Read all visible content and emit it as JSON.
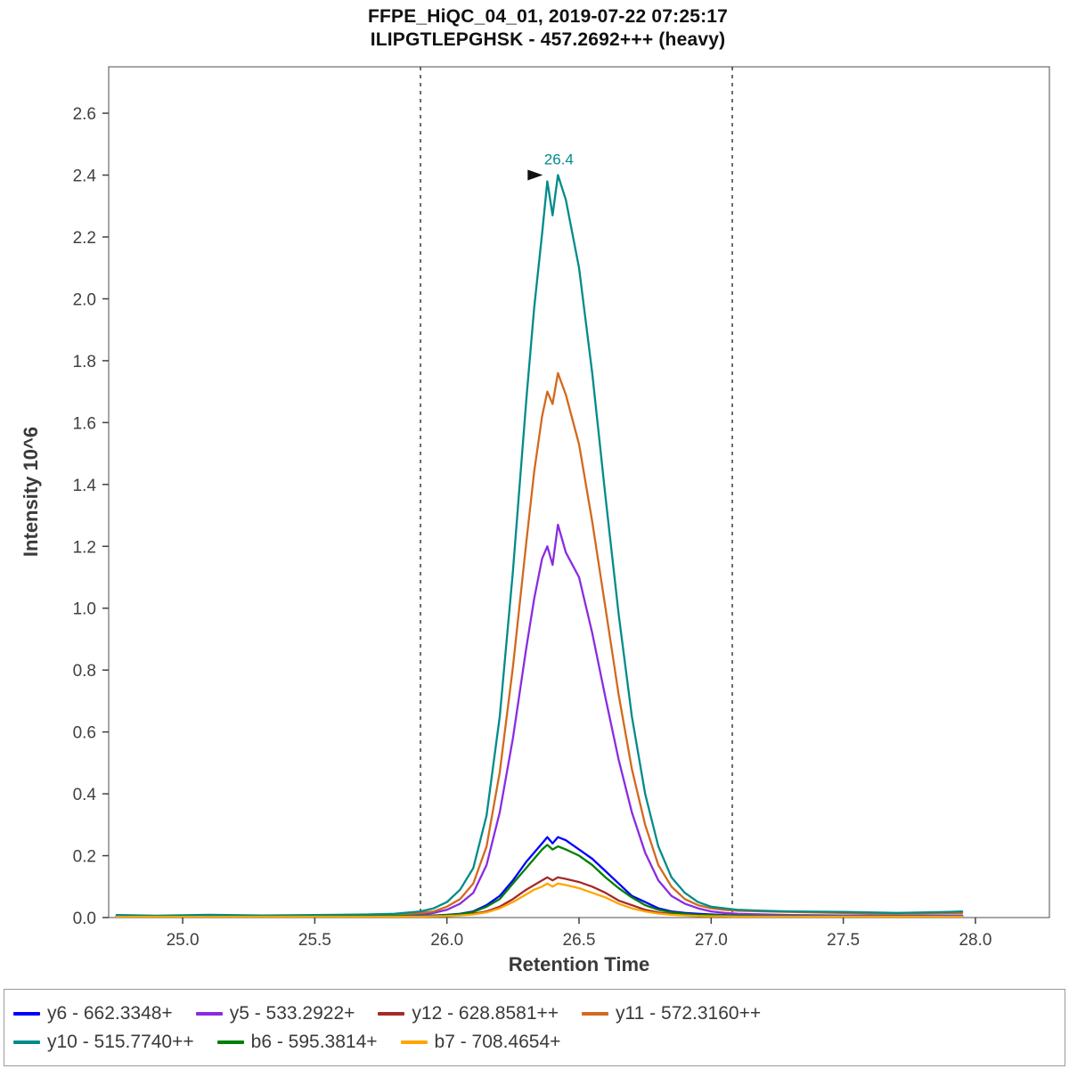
{
  "title": {
    "line1": "FFPE_HiQC_04_01, 2019-07-22 07:25:17",
    "line2": "ILIPGTLEPGHSK - 457.2692+++ (heavy)"
  },
  "chart_data": {
    "type": "line",
    "title": "FFPE_HiQC_04_01, 2019-07-22 07:25:17",
    "subtitle": "ILIPGTLEPGHSK - 457.2692+++ (heavy)",
    "xlabel": "Retention Time",
    "ylabel": "Intensity 10^6",
    "xlim": [
      24.72,
      28.28
    ],
    "ylim": [
      0,
      2.75
    ],
    "grid": false,
    "legend_position": "bottom",
    "x_ticks": {
      "values": [
        25.0,
        25.5,
        26.0,
        26.5,
        27.0,
        27.5,
        28.0
      ],
      "labels": [
        "25.0",
        "25.5",
        "26.0",
        "26.5",
        "27.0",
        "27.5",
        "28.0"
      ]
    },
    "y_ticks": {
      "values": [
        0.0,
        0.2,
        0.4,
        0.6,
        0.8,
        1.0,
        1.2,
        1.4,
        1.6,
        1.8,
        2.0,
        2.2,
        2.4,
        2.6
      ],
      "labels": [
        "0.0",
        "0.2",
        "0.4",
        "0.6",
        "0.8",
        "1.0",
        "1.2",
        "1.4",
        "1.6",
        "1.8",
        "2.0",
        "2.2",
        "2.4",
        "2.6"
      ]
    },
    "boundaries": [
      25.9,
      27.08
    ],
    "annotation": {
      "text": "26.4",
      "rt": 26.41,
      "peak_height": 2.4,
      "color": "#008b8b"
    },
    "x": [
      24.75,
      24.9,
      25.1,
      25.3,
      25.5,
      25.7,
      25.8,
      25.9,
      25.95,
      26.0,
      26.05,
      26.1,
      26.15,
      26.2,
      26.25,
      26.3,
      26.33,
      26.36,
      26.38,
      26.4,
      26.42,
      26.45,
      26.5,
      26.55,
      26.6,
      26.65,
      26.7,
      26.75,
      26.8,
      26.85,
      26.9,
      26.95,
      27.0,
      27.05,
      27.1,
      27.2,
      27.3,
      27.5,
      27.7,
      27.9,
      27.95
    ],
    "series": [
      {
        "name": "y6 - 662.3348+",
        "color": "#0000ff",
        "values": [
          0.004,
          0.005,
          0.004,
          0.005,
          0.004,
          0.005,
          0.006,
          0.006,
          0.007,
          0.009,
          0.012,
          0.02,
          0.04,
          0.07,
          0.12,
          0.18,
          0.21,
          0.24,
          0.26,
          0.24,
          0.26,
          0.25,
          0.22,
          0.19,
          0.15,
          0.11,
          0.07,
          0.05,
          0.03,
          0.02,
          0.015,
          0.012,
          0.01,
          0.008,
          0.007,
          0.006,
          0.006,
          0.005,
          0.005,
          0.005,
          0.005
        ]
      },
      {
        "name": "y5 - 533.2922+",
        "color": "#8a2be2",
        "values": [
          0.005,
          0.004,
          0.006,
          0.005,
          0.005,
          0.006,
          0.008,
          0.01,
          0.015,
          0.025,
          0.045,
          0.08,
          0.17,
          0.34,
          0.58,
          0.87,
          1.03,
          1.16,
          1.2,
          1.14,
          1.27,
          1.18,
          1.1,
          0.92,
          0.71,
          0.51,
          0.34,
          0.21,
          0.12,
          0.07,
          0.045,
          0.03,
          0.02,
          0.015,
          0.012,
          0.01,
          0.008,
          0.007,
          0.006,
          0.007,
          0.007
        ]
      },
      {
        "name": "y12 - 628.8581++",
        "color": "#a52a2a",
        "values": [
          0.003,
          0.003,
          0.004,
          0.003,
          0.004,
          0.004,
          0.004,
          0.004,
          0.005,
          0.006,
          0.008,
          0.012,
          0.02,
          0.035,
          0.06,
          0.09,
          0.105,
          0.12,
          0.13,
          0.12,
          0.13,
          0.125,
          0.115,
          0.1,
          0.08,
          0.055,
          0.04,
          0.025,
          0.016,
          0.011,
          0.008,
          0.006,
          0.005,
          0.005,
          0.004,
          0.004,
          0.004,
          0.003,
          0.003,
          0.003,
          0.003
        ]
      },
      {
        "name": "y11 - 572.3160++",
        "color": "#d2691e",
        "values": [
          0.006,
          0.005,
          0.007,
          0.006,
          0.006,
          0.008,
          0.01,
          0.015,
          0.02,
          0.035,
          0.06,
          0.11,
          0.23,
          0.47,
          0.81,
          1.21,
          1.44,
          1.62,
          1.7,
          1.66,
          1.76,
          1.69,
          1.53,
          1.28,
          1.0,
          0.72,
          0.48,
          0.3,
          0.17,
          0.1,
          0.06,
          0.04,
          0.03,
          0.025,
          0.022,
          0.02,
          0.018,
          0.015,
          0.012,
          0.015,
          0.015
        ]
      },
      {
        "name": "y10 - 515.7740++",
        "color": "#008b8b",
        "values": [
          0.008,
          0.006,
          0.009,
          0.007,
          0.008,
          0.01,
          0.012,
          0.02,
          0.03,
          0.05,
          0.09,
          0.16,
          0.33,
          0.65,
          1.12,
          1.67,
          1.97,
          2.21,
          2.38,
          2.27,
          2.4,
          2.32,
          2.1,
          1.76,
          1.36,
          0.98,
          0.65,
          0.4,
          0.23,
          0.13,
          0.08,
          0.05,
          0.035,
          0.03,
          0.025,
          0.022,
          0.02,
          0.018,
          0.015,
          0.018,
          0.02
        ]
      },
      {
        "name": "b6 - 595.3814+",
        "color": "#008000",
        "values": [
          0.003,
          0.004,
          0.003,
          0.004,
          0.004,
          0.005,
          0.005,
          0.005,
          0.006,
          0.008,
          0.011,
          0.018,
          0.035,
          0.06,
          0.11,
          0.16,
          0.19,
          0.22,
          0.235,
          0.22,
          0.23,
          0.22,
          0.2,
          0.17,
          0.13,
          0.095,
          0.065,
          0.04,
          0.025,
          0.017,
          0.012,
          0.009,
          0.008,
          0.007,
          0.006,
          0.005,
          0.005,
          0.004,
          0.004,
          0.004,
          0.004
        ]
      },
      {
        "name": "b7 - 708.4654+",
        "color": "#ffa500",
        "values": [
          0.002,
          0.003,
          0.002,
          0.003,
          0.003,
          0.003,
          0.003,
          0.003,
          0.004,
          0.005,
          0.007,
          0.01,
          0.017,
          0.03,
          0.05,
          0.075,
          0.09,
          0.1,
          0.11,
          0.1,
          0.11,
          0.105,
          0.095,
          0.08,
          0.065,
          0.045,
          0.03,
          0.02,
          0.013,
          0.009,
          0.007,
          0.005,
          0.004,
          0.004,
          0.003,
          0.003,
          0.003,
          0.003,
          0.003,
          0.003,
          0.003
        ]
      }
    ]
  }
}
